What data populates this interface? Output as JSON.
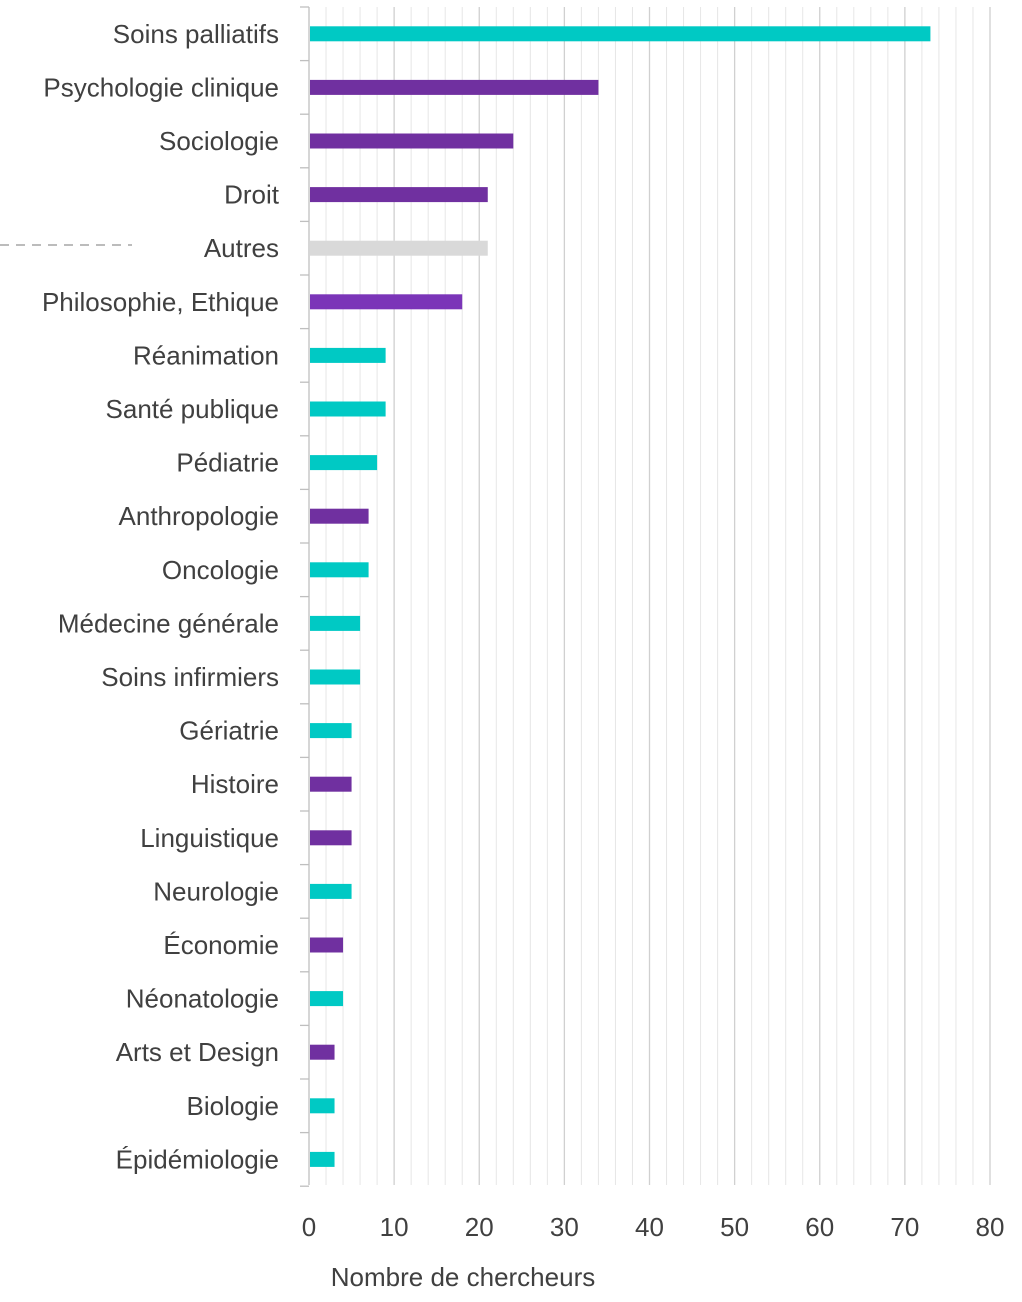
{
  "chart_data": {
    "type": "bar",
    "orientation": "horizontal",
    "xlabel": "Nombre de chercheurs",
    "xlim": [
      0,
      80
    ],
    "x_ticks": [
      "0",
      "10",
      "20",
      "30",
      "40",
      "50",
      "60",
      "70",
      "80"
    ],
    "grid": true,
    "categories": [
      "Soins palliatifs",
      "Psychologie clinique",
      "Sociologie",
      "Droit",
      "Autres",
      "Philosophie, Ethique",
      "Réanimation",
      "Santé publique",
      "Pédiatrie",
      "Anthropologie",
      "Oncologie",
      "Médecine générale",
      "Soins infirmiers",
      "Gériatrie",
      "Histoire",
      "Linguistique",
      "Neurologie",
      "Économie",
      "Néonatologie",
      "Arts et Design",
      "Biologie",
      "Épidémiologie"
    ],
    "values": [
      73,
      34,
      24,
      21,
      21,
      18,
      9,
      9,
      8,
      7,
      7,
      6,
      6,
      5,
      5,
      5,
      5,
      4,
      4,
      3,
      3,
      3
    ],
    "bar_colors": [
      "#00C9C4",
      "#7030A0",
      "#7030A0",
      "#7030A0",
      "#D9D9D9",
      "#7B35B8",
      "#00C9C4",
      "#00C9C4",
      "#00C9C4",
      "#7030A0",
      "#00C9C4",
      "#00C9C4",
      "#00C9C4",
      "#00C9C4",
      "#7030A0",
      "#7030A0",
      "#00C9C4",
      "#7030A0",
      "#00C9C4",
      "#7030A0",
      "#00C9C4",
      "#00C9C4"
    ]
  },
  "colors": {
    "teal": "#00C9C4",
    "purple": "#7030A0",
    "grey": "#D9D9D9",
    "grid": "#D9D9D9",
    "axis": "#BFBFBF",
    "text": "#404040"
  }
}
